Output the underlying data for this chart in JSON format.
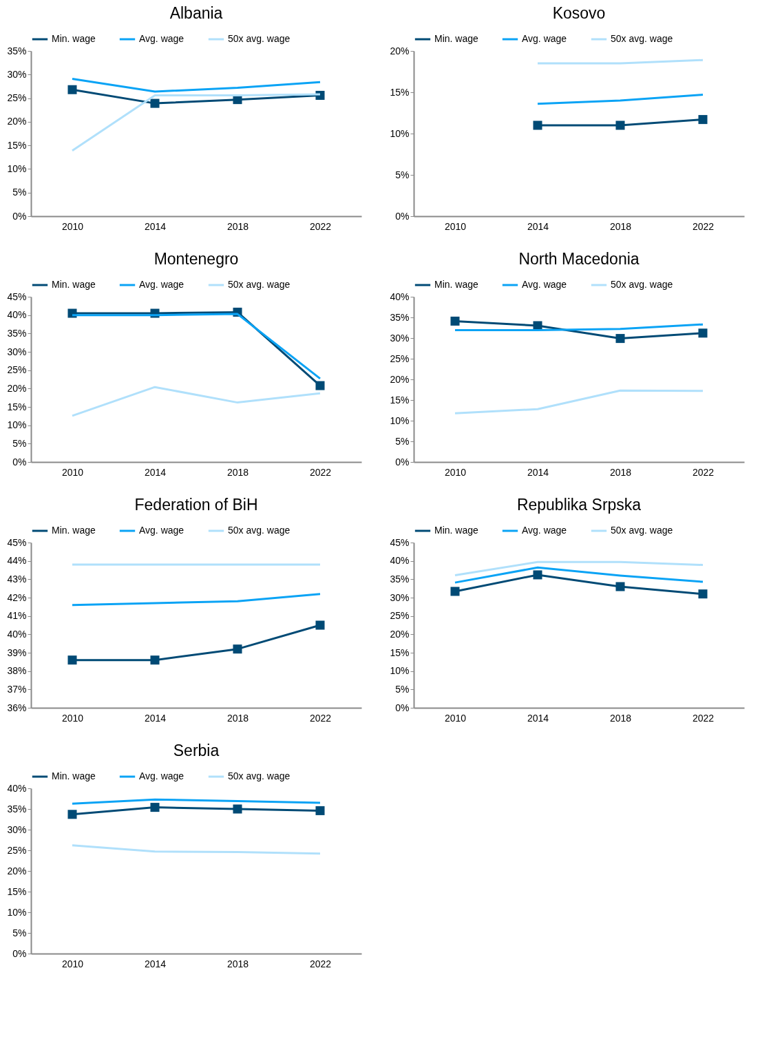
{
  "chart_data": [
    {
      "type": "line",
      "title": "Albania",
      "categories": [
        "2010",
        "2014",
        "2018",
        "2022"
      ],
      "legend": "top",
      "ylim": [
        0,
        35
      ],
      "yticks": [
        {
          "value": 0,
          "label": "0%"
        },
        {
          "value": 5,
          "label": "5%"
        },
        {
          "value": 10,
          "label": "10%"
        },
        {
          "value": 15,
          "label": "15%"
        },
        {
          "value": 20,
          "label": "20%"
        },
        {
          "value": 25,
          "label": "25%"
        },
        {
          "value": 30,
          "label": "30%"
        },
        {
          "value": 35,
          "label": "35%"
        }
      ],
      "series": [
        {
          "name": "Min. wage",
          "color": "#004a75",
          "marker": "square",
          "values": [
            26.8,
            23.9,
            24.7,
            25.6
          ]
        },
        {
          "name": "Avg. wage",
          "color": "#0aa3f5",
          "values": [
            29.1,
            26.4,
            27.2,
            28.4
          ]
        },
        {
          "name": "50x avg. wage",
          "color": "#b0e0fb",
          "values": [
            13.9,
            25.6,
            25.6,
            25.8
          ]
        }
      ]
    },
    {
      "type": "line",
      "title": "Kosovo",
      "categories": [
        "2010",
        "2014",
        "2018",
        "2022"
      ],
      "legend": "top",
      "ylim": [
        0,
        20
      ],
      "yticks": [
        {
          "value": 0,
          "label": "0%"
        },
        {
          "value": 5,
          "label": "5%"
        },
        {
          "value": 10,
          "label": "10%"
        },
        {
          "value": 15,
          "label": "15%"
        },
        {
          "value": 20,
          "label": "20%"
        }
      ],
      "series": [
        {
          "name": "Min. wage",
          "color": "#004a75",
          "marker": "square",
          "values": [
            null,
            11.0,
            11.0,
            11.7
          ]
        },
        {
          "name": "Avg. wage",
          "color": "#0aa3f5",
          "values": [
            null,
            13.6,
            14.0,
            14.7
          ]
        },
        {
          "name": "50x avg. wage",
          "color": "#b0e0fb",
          "values": [
            null,
            18.5,
            18.5,
            18.9
          ]
        }
      ]
    },
    {
      "type": "line",
      "title": "Montenegro",
      "categories": [
        "2010",
        "2014",
        "2018",
        "2022"
      ],
      "legend": "top",
      "ylim": [
        0,
        45
      ],
      "yticks": [
        {
          "value": 0,
          "label": "0%"
        },
        {
          "value": 5,
          "label": "5%"
        },
        {
          "value": 10,
          "label": "10%"
        },
        {
          "value": 15,
          "label": "15%"
        },
        {
          "value": 20,
          "label": "20%"
        },
        {
          "value": 25,
          "label": "25%"
        },
        {
          "value": 30,
          "label": "30%"
        },
        {
          "value": 35,
          "label": "35%"
        },
        {
          "value": 40,
          "label": "40%"
        },
        {
          "value": 45,
          "label": "45%"
        }
      ],
      "series": [
        {
          "name": "Min. wage",
          "color": "#004a75",
          "marker": "square",
          "values": [
            40.5,
            40.5,
            40.8,
            20.8
          ]
        },
        {
          "name": "Avg. wage",
          "color": "#0aa3f5",
          "values": [
            40.0,
            40.0,
            40.3,
            22.7
          ]
        },
        {
          "name": "50x avg. wage",
          "color": "#b0e0fb",
          "values": [
            12.6,
            20.4,
            16.2,
            18.7
          ]
        }
      ]
    },
    {
      "type": "line",
      "title": "North Macedonia",
      "categories": [
        "2010",
        "2014",
        "2018",
        "2022"
      ],
      "legend": "top",
      "ylim": [
        0,
        40
      ],
      "yticks": [
        {
          "value": 0,
          "label": "0%"
        },
        {
          "value": 5,
          "label": "5%"
        },
        {
          "value": 10,
          "label": "10%"
        },
        {
          "value": 15,
          "label": "15%"
        },
        {
          "value": 20,
          "label": "20%"
        },
        {
          "value": 25,
          "label": "25%"
        },
        {
          "value": 30,
          "label": "30%"
        },
        {
          "value": 35,
          "label": "35%"
        },
        {
          "value": 40,
          "label": "40%"
        }
      ],
      "series": [
        {
          "name": "Min. wage",
          "color": "#004a75",
          "marker": "square",
          "values": [
            34.1,
            33.0,
            29.9,
            31.2
          ]
        },
        {
          "name": "Avg. wage",
          "color": "#0aa3f5",
          "values": [
            31.9,
            31.9,
            32.2,
            33.3
          ]
        },
        {
          "name": "50x avg. wage",
          "color": "#b0e0fb",
          "values": [
            11.8,
            12.8,
            17.3,
            17.2
          ]
        }
      ]
    },
    {
      "type": "line",
      "title": "Federation of BiH",
      "categories": [
        "2010",
        "2014",
        "2018",
        "2022"
      ],
      "legend": "top",
      "ylim": [
        36,
        45
      ],
      "yticks": [
        {
          "value": 36,
          "label": "36%"
        },
        {
          "value": 37,
          "label": "37%"
        },
        {
          "value": 38,
          "label": "38%"
        },
        {
          "value": 39,
          "label": "39%"
        },
        {
          "value": 40,
          "label": "40%"
        },
        {
          "value": 41,
          "label": "41%"
        },
        {
          "value": 42,
          "label": "42%"
        },
        {
          "value": 43,
          "label": "43%"
        },
        {
          "value": 44,
          "label": "44%"
        },
        {
          "value": 45,
          "label": "45%"
        }
      ],
      "series": [
        {
          "name": "Min. wage",
          "color": "#004a75",
          "marker": "square",
          "values": [
            38.6,
            38.6,
            39.2,
            40.5
          ]
        },
        {
          "name": "Avg. wage",
          "color": "#0aa3f5",
          "values": [
            41.6,
            41.7,
            41.8,
            42.2
          ]
        },
        {
          "name": "50x avg. wage",
          "color": "#b0e0fb",
          "values": [
            43.8,
            43.8,
            43.8,
            43.8
          ]
        }
      ]
    },
    {
      "type": "line",
      "title": "Republika Srpska",
      "categories": [
        "2010",
        "2014",
        "2018",
        "2022"
      ],
      "legend": "top",
      "ylim": [
        0,
        45
      ],
      "yticks": [
        {
          "value": 0,
          "label": "0%"
        },
        {
          "value": 5,
          "label": "5%"
        },
        {
          "value": 10,
          "label": "10%"
        },
        {
          "value": 15,
          "label": "15%"
        },
        {
          "value": 20,
          "label": "20%"
        },
        {
          "value": 25,
          "label": "25%"
        },
        {
          "value": 30,
          "label": "30%"
        },
        {
          "value": 35,
          "label": "35%"
        },
        {
          "value": 40,
          "label": "40%"
        },
        {
          "value": 45,
          "label": "45%"
        }
      ],
      "series": [
        {
          "name": "Min. wage",
          "color": "#004a75",
          "marker": "square",
          "values": [
            31.7,
            36.2,
            33.0,
            31.0
          ]
        },
        {
          "name": "Avg. wage",
          "color": "#0aa3f5",
          "values": [
            34.1,
            38.2,
            36.0,
            34.3
          ]
        },
        {
          "name": "50x avg. wage",
          "color": "#b0e0fb",
          "values": [
            36.1,
            39.7,
            39.7,
            38.9
          ]
        }
      ]
    },
    {
      "type": "line",
      "title": "Serbia",
      "categories": [
        "2010",
        "2014",
        "2018",
        "2022"
      ],
      "legend": "top",
      "ylim": [
        0,
        40
      ],
      "yticks": [
        {
          "value": 0,
          "label": "0%"
        },
        {
          "value": 5,
          "label": "5%"
        },
        {
          "value": 10,
          "label": "10%"
        },
        {
          "value": 15,
          "label": "15%"
        },
        {
          "value": 20,
          "label": "20%"
        },
        {
          "value": 25,
          "label": "25%"
        },
        {
          "value": 30,
          "label": "30%"
        },
        {
          "value": 35,
          "label": "35%"
        },
        {
          "value": 40,
          "label": "40%"
        }
      ],
      "series": [
        {
          "name": "Min. wage",
          "color": "#004a75",
          "marker": "square",
          "values": [
            33.7,
            35.4,
            35.0,
            34.6
          ]
        },
        {
          "name": "Avg. wage",
          "color": "#0aa3f5",
          "values": [
            36.3,
            37.3,
            36.9,
            36.5
          ]
        },
        {
          "name": "50x avg. wage",
          "color": "#b0e0fb",
          "values": [
            26.2,
            24.7,
            24.6,
            24.2
          ]
        }
      ]
    }
  ]
}
